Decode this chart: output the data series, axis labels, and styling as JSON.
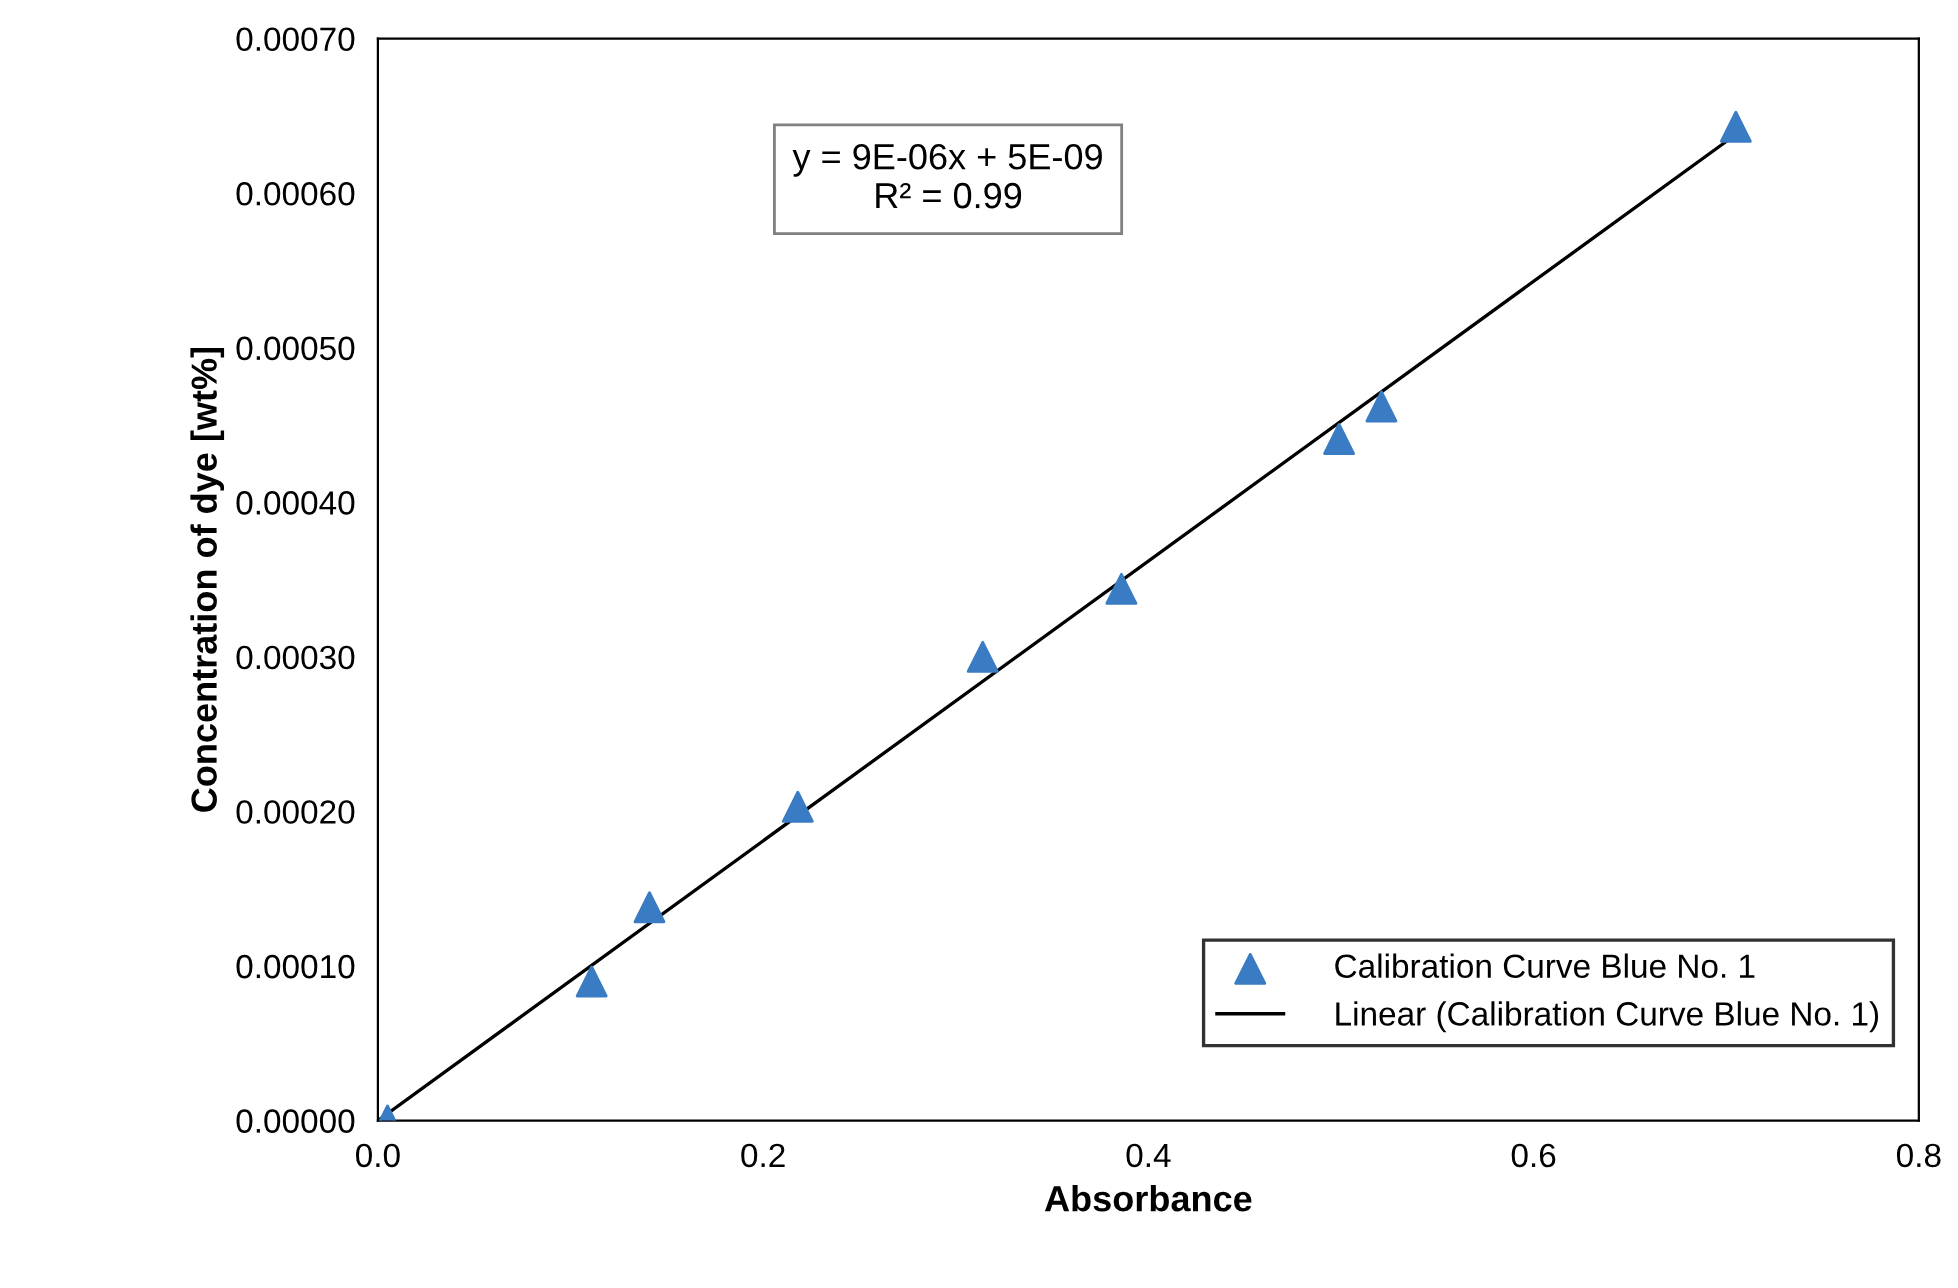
{
  "chart_data": {
    "type": "scatter",
    "xlabel": "Absorbance",
    "ylabel": "Concentration of dye [wt%]",
    "series": [
      {
        "name": "Calibration Curve Blue No. 1",
        "color": "#3a7cc4",
        "marker": "triangle",
        "x": [
          0.005,
          0.111,
          0.141,
          0.218,
          0.314,
          0.386,
          0.499,
          0.521,
          0.705
        ],
        "values": [
          0.0,
          9e-05,
          0.000138,
          0.000203,
          0.0003,
          0.000344,
          0.000441,
          0.000462,
          0.000643
        ]
      },
      {
        "name": "Linear (Calibration Curve Blue No. 1)",
        "type": "line",
        "color": "#000000",
        "marker": "none",
        "line_style": "solid",
        "x": [
          0.0,
          0.705
        ],
        "values": [
          0.0,
          0.000638
        ]
      }
    ],
    "annotations": [
      "y = 9E-06x + 5E-09\nR² = 0.99"
    ],
    "xlim": [
      0.0,
      0.8
    ],
    "xticks": [
      {
        "value": 0.0,
        "label": "0.0"
      },
      0.2,
      0.4,
      0.6,
      0.8
    ],
    "ylim": [
      0.0,
      0.0007
    ],
    "yticks": [
      {
        "value": 0.0,
        "label": "0.00000"
      },
      {
        "value": 0.0001,
        "label": "0.00010"
      },
      {
        "value": 0.0002,
        "label": "0.00020"
      },
      {
        "value": 0.0003,
        "label": "0.00030"
      },
      {
        "value": 0.0004,
        "label": "0.00040"
      },
      {
        "value": 0.0005,
        "label": "0.00050"
      },
      {
        "value": 0.0006,
        "label": "0.00060"
      },
      {
        "value": 0.0007,
        "label": "0.00070"
      }
    ],
    "grid": false,
    "legend": "lower right"
  }
}
